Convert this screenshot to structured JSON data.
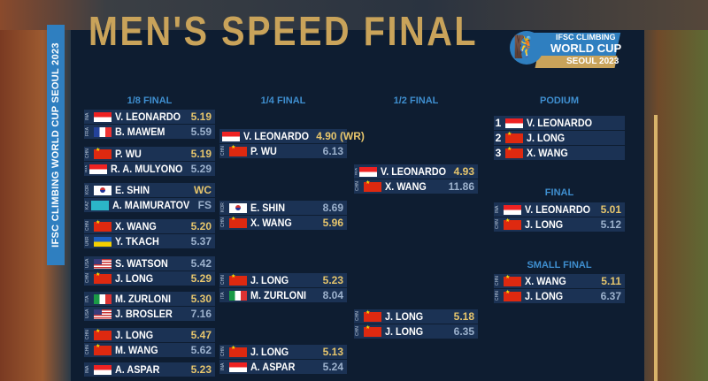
{
  "title": "MEN'S SPEED FINAL",
  "sidebar_text": "IFSC CLIMBING WORLD CUP SEOUL 2023",
  "logo": {
    "line1": "IFSC CLIMBING",
    "line2": "WORLD CUP",
    "line3": "SEOUL 2023",
    "icon": "climber-icon"
  },
  "colors": {
    "panel": "#0e1d31",
    "row": "#1b3254",
    "gold": "#c9a35a",
    "winner_time": "#e6c56c",
    "loser_time": "#9cb1cc",
    "header": "#3f8fd0",
    "accent_blue": "#2f7fc0"
  },
  "rounds": {
    "eighth": {
      "label": "1/8 FINAL",
      "heats": [
        [
          {
            "cc": "INA",
            "name": "V. LEONARDO",
            "time": "5.19",
            "win": true
          },
          {
            "cc": "FRA",
            "name": "B. MAWEM",
            "time": "5.59",
            "win": false
          }
        ],
        [
          {
            "cc": "CHN",
            "name": "P. WU",
            "time": "5.19",
            "win": true
          },
          {
            "cc": "INA",
            "name": "R. A. MULYONO",
            "time": "5.29",
            "win": false
          }
        ],
        [
          {
            "cc": "KOR",
            "name": "E. SHIN",
            "time": "WC",
            "win": true
          },
          {
            "cc": "KAZ",
            "name": "A. MAIMURATOV",
            "time": "FS",
            "win": false
          }
        ],
        [
          {
            "cc": "CHN",
            "name": "X. WANG",
            "time": "5.20",
            "win": true
          },
          {
            "cc": "UKR",
            "name": "Y. TKACH",
            "time": "5.37",
            "win": false
          }
        ],
        [
          {
            "cc": "USA",
            "name": "S. WATSON",
            "time": "5.42",
            "win": false
          },
          {
            "cc": "CHN",
            "name": "J. LONG",
            "time": "5.29",
            "win": true
          }
        ],
        [
          {
            "cc": "ITA",
            "name": "M. ZURLONI",
            "time": "5.30",
            "win": true
          },
          {
            "cc": "USA",
            "name": "J. BROSLER",
            "time": "7.16",
            "win": false
          }
        ],
        [
          {
            "cc": "CHN",
            "name": "J. LONG",
            "time": "5.47",
            "win": true
          },
          {
            "cc": "CHN",
            "name": "M. WANG",
            "time": "5.62",
            "win": false
          }
        ],
        [
          {
            "cc": "INA",
            "name": "A. ASPAR",
            "time": "5.23",
            "win": true
          }
        ]
      ]
    },
    "quarter": {
      "label": "1/4 FINAL",
      "heats": [
        [
          {
            "cc": "INA",
            "name": "V. LEONARDO",
            "time": "4.90 (WR)",
            "win": true
          },
          {
            "cc": "CHN",
            "name": "P. WU",
            "time": "6.13",
            "win": false
          }
        ],
        [
          {
            "cc": "KOR",
            "name": "E. SHIN",
            "time": "8.69",
            "win": false
          },
          {
            "cc": "CHN",
            "name": "X. WANG",
            "time": "5.96",
            "win": true
          }
        ],
        [
          {
            "cc": "CHN",
            "name": "J. LONG",
            "time": "5.23",
            "win": true
          },
          {
            "cc": "ITA",
            "name": "M. ZURLONI",
            "time": "8.04",
            "win": false
          }
        ],
        [
          {
            "cc": "CHN",
            "name": "J. LONG",
            "time": "5.13",
            "win": true
          },
          {
            "cc": "INA",
            "name": "A. ASPAR",
            "time": "5.24",
            "win": false
          }
        ]
      ]
    },
    "semi": {
      "label": "1/2 FINAL",
      "heats": [
        [
          {
            "cc": "INA",
            "name": "V. LEONARDO",
            "time": "4.93",
            "win": true
          },
          {
            "cc": "CHN",
            "name": "X. WANG",
            "time": "11.86",
            "win": false
          }
        ],
        [
          {
            "cc": "CHN",
            "name": "J. LONG",
            "time": "5.18",
            "win": true
          },
          {
            "cc": "CHN",
            "name": "J. LONG",
            "time": "6.35",
            "win": false
          }
        ]
      ]
    },
    "podium": {
      "label": "PODIUM",
      "entries": [
        {
          "rank": "1",
          "cc": "INA",
          "name": "V. LEONARDO"
        },
        {
          "rank": "2",
          "cc": "CHN",
          "name": "J. LONG"
        },
        {
          "rank": "3",
          "cc": "CHN",
          "name": "X. WANG"
        }
      ]
    },
    "final": {
      "label": "FINAL",
      "heats": [
        [
          {
            "cc": "INA",
            "name": "V. LEONARDO",
            "time": "5.01",
            "win": true
          },
          {
            "cc": "CHN",
            "name": "J. LONG",
            "time": "5.12",
            "win": false
          }
        ]
      ]
    },
    "small_final": {
      "label": "SMALL FINAL",
      "heats": [
        [
          {
            "cc": "CHN",
            "name": "X. WANG",
            "time": "5.11",
            "win": true
          },
          {
            "cc": "CHN",
            "name": "J. LONG",
            "time": "6.37",
            "win": false
          }
        ]
      ]
    }
  }
}
